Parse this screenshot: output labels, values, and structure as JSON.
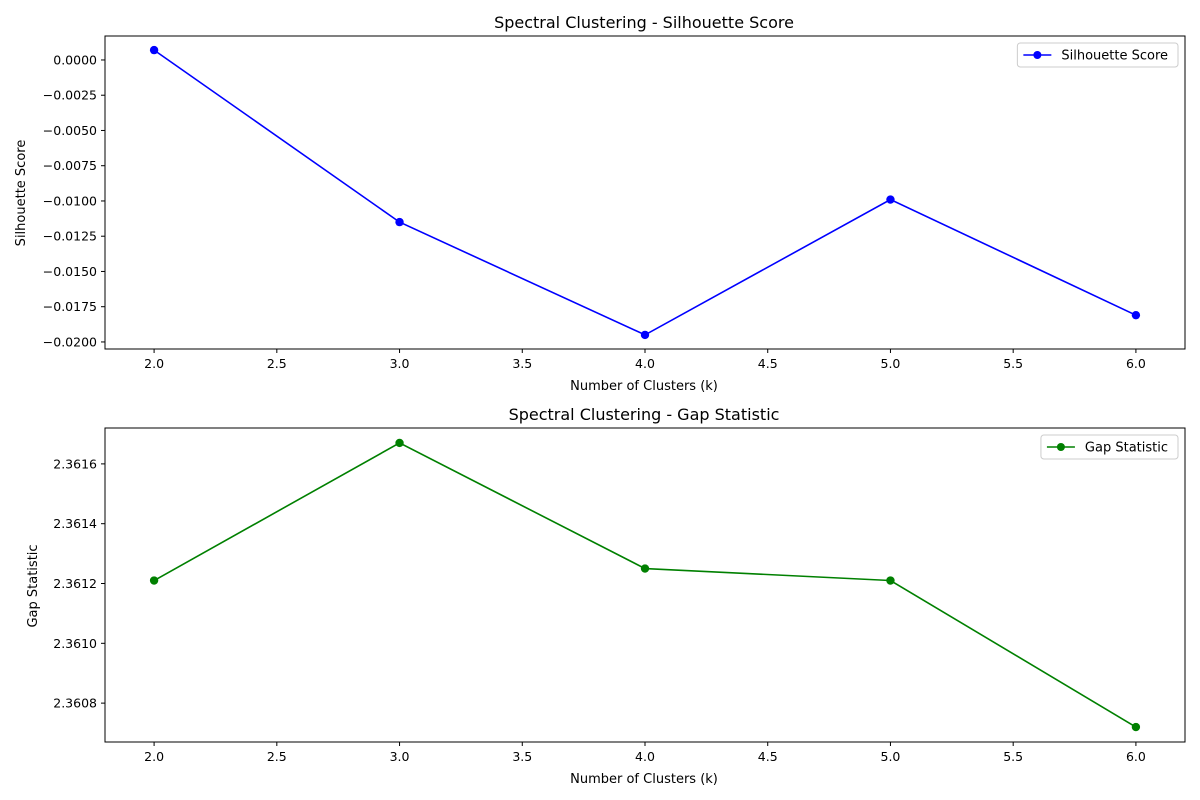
{
  "chart_data": [
    {
      "type": "line",
      "title": "Spectral Clustering - Silhouette Score",
      "xlabel": "Number of Clusters (k)",
      "ylabel": "Silhouette Score",
      "x": [
        2,
        3,
        4,
        5,
        6
      ],
      "series": [
        {
          "name": "Silhouette Score",
          "values": [
            0.0007,
            -0.0115,
            -0.0195,
            -0.0099,
            -0.0181
          ],
          "color": "#0000ff",
          "marker": "circle"
        }
      ],
      "xlim": [
        1.8,
        6.2
      ],
      "ylim": [
        -0.0205,
        0.0017
      ],
      "xticks": [
        2.0,
        2.5,
        3.0,
        3.5,
        4.0,
        4.5,
        5.0,
        5.5,
        6.0
      ],
      "xtick_labels": [
        "2.0",
        "2.5",
        "3.0",
        "3.5",
        "4.0",
        "4.5",
        "5.0",
        "5.5",
        "6.0"
      ],
      "yticks": [
        0.0,
        -0.0025,
        -0.005,
        -0.0075,
        -0.01,
        -0.0125,
        -0.015,
        -0.0175,
        -0.02
      ],
      "ytick_labels": [
        "0.0000",
        "−0.0025",
        "−0.0050",
        "−0.0075",
        "−0.0100",
        "−0.0125",
        "−0.0150",
        "−0.0175",
        "−0.0200"
      ],
      "grid": false,
      "legend_position": "top-right"
    },
    {
      "type": "line",
      "title": "Spectral Clustering - Gap Statistic",
      "xlabel": "Number of Clusters (k)",
      "ylabel": "Gap Statistic",
      "x": [
        2,
        3,
        4,
        5,
        6
      ],
      "series": [
        {
          "name": "Gap Statistic",
          "values": [
            2.36121,
            2.36167,
            2.36125,
            2.36121,
            2.36072
          ],
          "color": "#008000",
          "marker": "circle"
        }
      ],
      "xlim": [
        1.8,
        6.2
      ],
      "ylim": [
        2.36067,
        2.36172
      ],
      "xticks": [
        2.0,
        2.5,
        3.0,
        3.5,
        4.0,
        4.5,
        5.0,
        5.5,
        6.0
      ],
      "xtick_labels": [
        "2.0",
        "2.5",
        "3.0",
        "3.5",
        "4.0",
        "4.5",
        "5.0",
        "5.5",
        "6.0"
      ],
      "yticks": [
        2.3608,
        2.361,
        2.3612,
        2.3614,
        2.3616
      ],
      "ytick_labels": [
        "2.3608",
        "2.3610",
        "2.3612",
        "2.3614",
        "2.3616"
      ],
      "grid": false,
      "legend_position": "top-right"
    }
  ]
}
